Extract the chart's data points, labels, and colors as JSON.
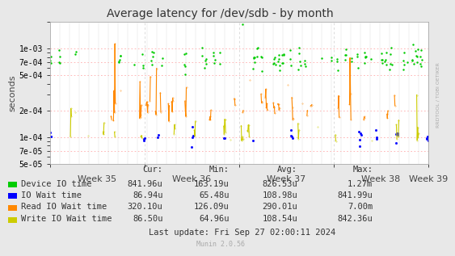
{
  "title": "Average latency for /dev/sdb - by month",
  "ylabel": "seconds",
  "xlabel_weeks": [
    "Week 35",
    "Week 36",
    "Week 37",
    "Week 38",
    "Week 39"
  ],
  "ylim_log": [
    5e-05,
    0.002
  ],
  "bg_color": "#e8e8e8",
  "plot_bg_color": "#ffffff",
  "grid_color_h": "#ffaaaa",
  "grid_color_v": "#cccccc",
  "colors": {
    "device_io": "#00cc00",
    "io_wait": "#0000ff",
    "read_io_wait": "#ff8800",
    "write_io_wait": "#cccc00"
  },
  "legend": [
    {
      "label": "Device IO time",
      "color": "#00cc00"
    },
    {
      "label": "IO Wait time",
      "color": "#0000ff"
    },
    {
      "label": "Read IO Wait time",
      "color": "#ff8800"
    },
    {
      "label": "Write IO Wait time",
      "color": "#cccc00"
    }
  ],
  "stats": {
    "headers": [
      "Cur:",
      "Min:",
      "Avg:",
      "Max:"
    ],
    "rows": [
      [
        "841.96u",
        "163.19u",
        "826.53u",
        "1.27m"
      ],
      [
        "86.94u",
        "65.48u",
        "108.98u",
        "841.99u"
      ],
      [
        "320.10u",
        "126.09u",
        "290.01u",
        "7.00m"
      ],
      [
        "86.50u",
        "64.96u",
        "108.54u",
        "842.36u"
      ]
    ]
  },
  "last_update": "Last update: Fri Sep 27 02:00:11 2024",
  "munin_version": "Munin 2.0.56",
  "rrdtool_label": "RRDTOOL / TOBI OETIKER"
}
